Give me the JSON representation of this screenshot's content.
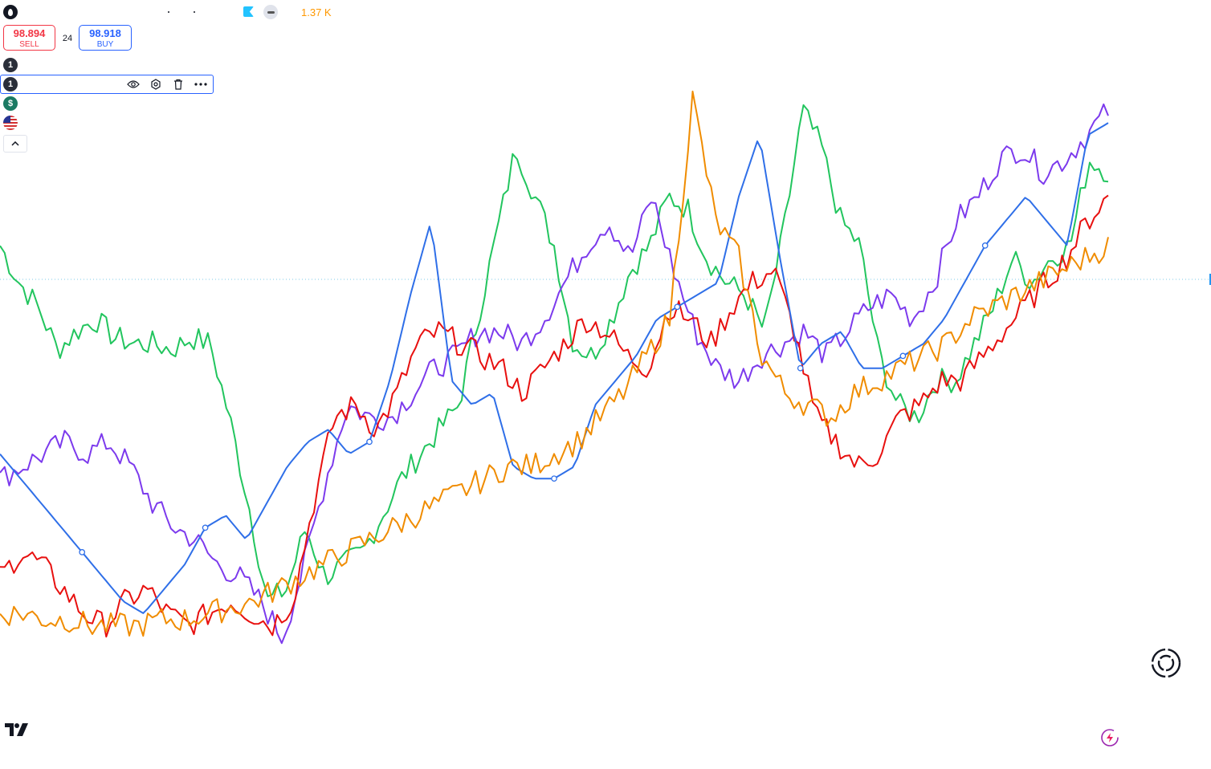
{
  "header": {
    "volume_label": "1.37 K"
  },
  "trade": {
    "sell_price": "98.894",
    "sell_label": "SELL",
    "spread": "24",
    "buy_price": "98.918",
    "buy_label": "BUY"
  },
  "legend": {
    "items": [
      {
        "icon": "number-one-icon",
        "text": "1"
      },
      {
        "icon": "number-one-icon",
        "text": "1"
      },
      {
        "icon": "dollar-icon",
        "text": "$"
      },
      {
        "icon": "us-flag-icon",
        "text": ""
      }
    ]
  },
  "colors": {
    "green": "#22c55e",
    "purple": "#7c3aed",
    "red": "#e8100f",
    "blue": "#2f6fe8",
    "orange": "#f08c00",
    "price_line": "#7ecbe9",
    "sell": "#f23645",
    "buy": "#2962ff"
  },
  "chart_data": {
    "type": "line",
    "title": "",
    "xlabel": "",
    "ylabel": "",
    "grid": false,
    "legend": "none",
    "ylim": [
      0,
      100
    ],
    "series": [
      {
        "color": "#22c55e",
        "values": [
          72,
          66,
          62,
          55,
          58,
          60,
          57,
          56,
          56,
          55,
          57,
          56,
          44,
          30,
          14,
          16,
          26,
          18,
          20,
          22,
          28,
          34,
          38,
          42,
          46,
          60,
          74,
          88,
          80,
          72,
          56,
          54,
          60,
          68,
          72,
          80,
          78,
          70,
          66,
          64,
          58,
          74,
          94,
          88,
          76,
          72,
          54,
          46,
          44,
          50,
          50,
          56,
          62,
          70,
          66,
          70,
          72,
          86,
          84
        ]
      },
      {
        "color": "#7c3aed",
        "values": [
          34,
          36,
          38,
          40,
          38,
          40,
          36,
          30,
          26,
          24,
          20,
          18,
          14,
          8,
          20,
          34,
          46,
          44,
          44,
          48,
          52,
          54,
          58,
          58,
          56,
          60,
          66,
          72,
          76,
          70,
          80,
          68,
          58,
          52,
          50,
          54,
          56,
          58,
          54,
          58,
          62,
          64,
          60,
          66,
          76,
          80,
          86,
          88,
          84,
          86,
          90,
          94
        ]
      },
      {
        "color": "#e8100f",
        "values": [
          18,
          22,
          20,
          16,
          12,
          10,
          14,
          16,
          12,
          10,
          12,
          14,
          12,
          10,
          14,
          30,
          44,
          46,
          42,
          48,
          56,
          58,
          56,
          54,
          52,
          48,
          52,
          56,
          60,
          58,
          54,
          52,
          62,
          60,
          56,
          62,
          66,
          68,
          58,
          44,
          40,
          36,
          38,
          44,
          46,
          50,
          50,
          54,
          58,
          62,
          66,
          70,
          76,
          80
        ]
      },
      {
        "color": "#2f6fe8",
        "values": [
          38,
          34,
          30,
          26,
          22,
          18,
          14,
          12,
          16,
          20,
          26,
          28,
          24,
          30,
          36,
          40,
          42,
          38,
          40,
          50,
          64,
          76,
          50,
          46,
          48,
          36,
          34,
          34,
          36,
          46,
          50,
          54,
          60,
          62,
          64,
          66,
          80,
          90,
          70,
          52,
          56,
          58,
          52,
          52,
          54,
          56,
          60,
          66,
          72,
          76,
          80,
          76,
          72,
          90,
          92
        ]
      },
      {
        "color": "#f08c00",
        "values": [
          12,
          12,
          11,
          11,
          10,
          10,
          10,
          11,
          11,
          12,
          13,
          14,
          16,
          18,
          20,
          22,
          24,
          26,
          28,
          30,
          32,
          34,
          36,
          36,
          38,
          40,
          44,
          48,
          54,
          60,
          96,
          76,
          70,
          54,
          48,
          46,
          44,
          48,
          50,
          52,
          54,
          56,
          60,
          62,
          64,
          66,
          68,
          70,
          72
        ]
      }
    ]
  }
}
